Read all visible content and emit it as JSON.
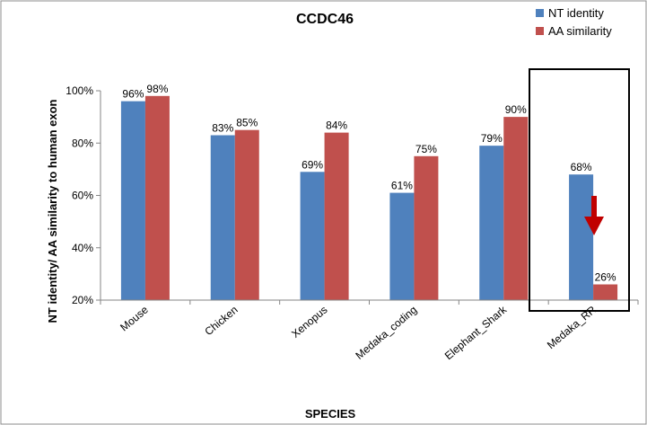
{
  "chart_data": {
    "type": "bar",
    "title": "CCDC46",
    "xlabel": "SPECIES",
    "ylabel": "NT identity/ AA similarity to human exon",
    "categories": [
      "Mouse",
      "Chicken",
      "Xenopus",
      "Medaka_coding",
      "Elephant_Shark",
      "Medaka_RR"
    ],
    "series": [
      {
        "name": "NT identity",
        "color": "#4F81BD",
        "values": [
          96,
          83,
          69,
          61,
          79,
          68
        ],
        "labels": [
          "96%",
          "83%",
          "69%",
          "61%",
          "79%",
          "68%"
        ]
      },
      {
        "name": "AA similarity",
        "color": "#C0504D",
        "values": [
          98,
          85,
          84,
          75,
          90,
          26
        ],
        "labels": [
          "98%",
          "85%",
          "84%",
          "75%",
          "90%",
          "26%"
        ]
      }
    ],
    "ylim": [
      20,
      100
    ],
    "yticks": [
      20,
      40,
      60,
      80,
      100
    ],
    "ytick_labels": [
      "20%",
      "40%",
      "60%",
      "80%",
      "100%"
    ],
    "grid": false,
    "legend_position": "top-right",
    "annotations": {
      "highlight_box_category": "Medaka_RR",
      "arrow": {
        "direction": "down",
        "color": "#C00000"
      }
    }
  }
}
